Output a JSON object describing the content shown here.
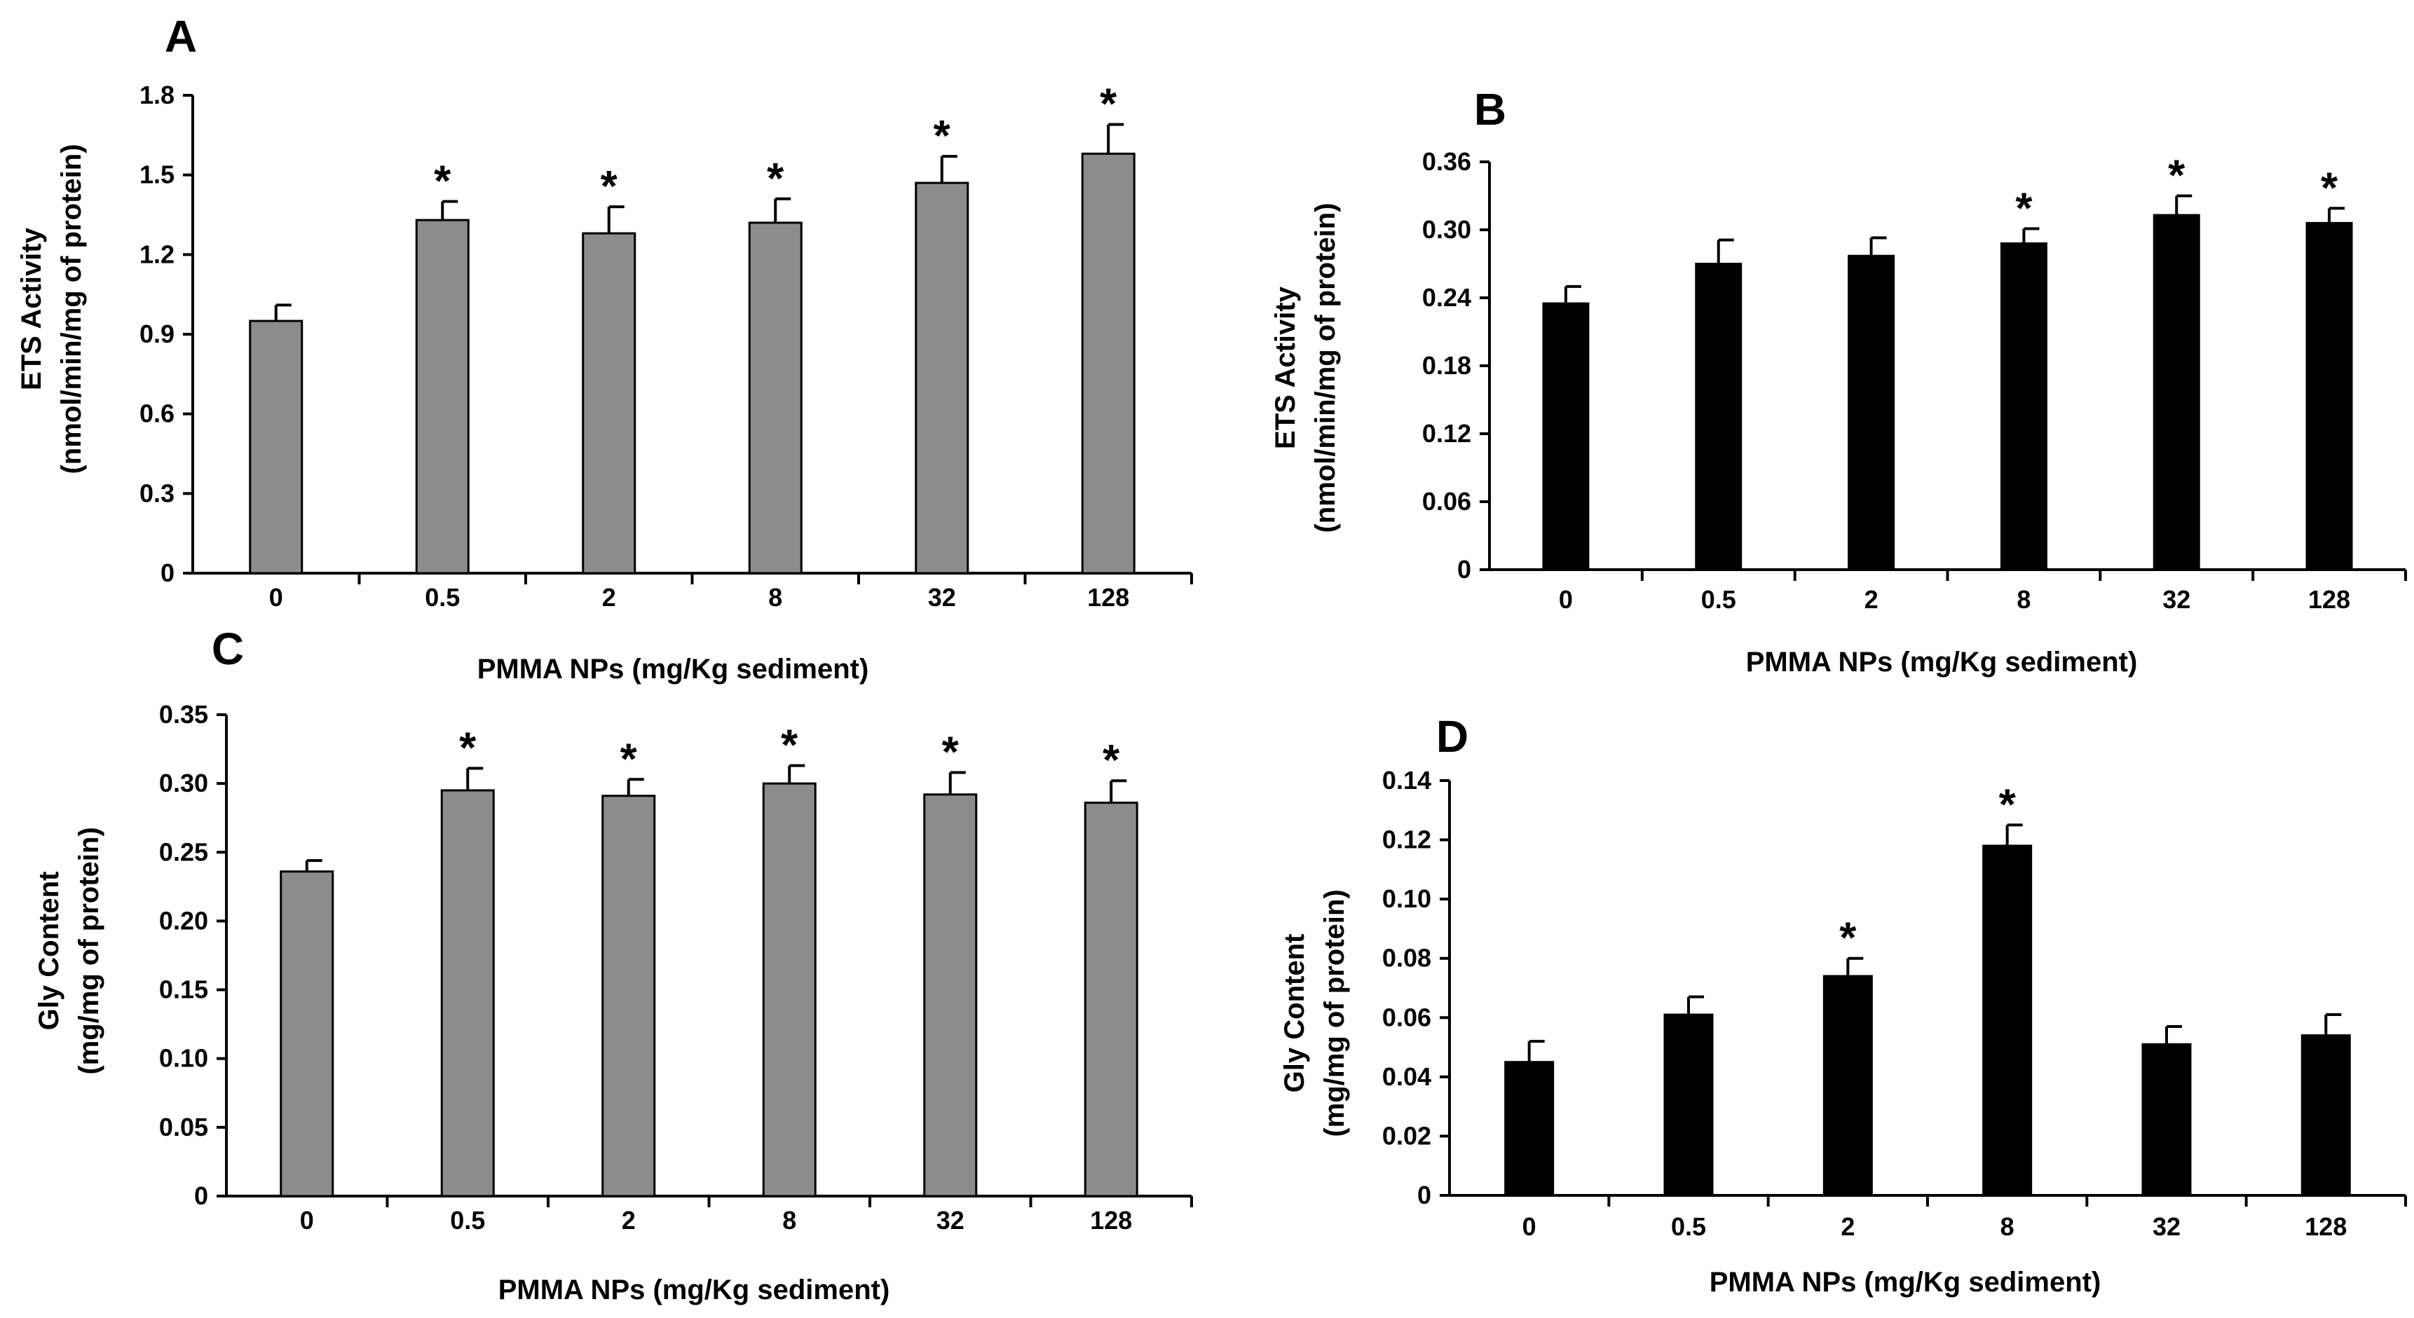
{
  "chart_data": [
    {
      "type": "bar",
      "panel": "A",
      "bar_color": "#8c8c8c",
      "categories": [
        "0",
        "0.5",
        "2",
        "8",
        "32",
        "128"
      ],
      "values": [
        0.95,
        1.33,
        1.28,
        1.32,
        1.47,
        1.58
      ],
      "errors": [
        0.06,
        0.07,
        0.1,
        0.09,
        0.1,
        0.11
      ],
      "significant": [
        false,
        true,
        true,
        true,
        true,
        true
      ],
      "significance_marker": "*",
      "yticks": [
        "0",
        "0.3",
        "0.6",
        "0.9",
        "1.2",
        "1.5",
        "1.8"
      ],
      "ylim": [
        0,
        1.8
      ],
      "ylabel_line1": "ETS Activity",
      "ylabel_line2": "(nmol/min/mg of protein)",
      "xlabel": "PMMA NPs (mg/Kg sediment)"
    },
    {
      "type": "bar",
      "panel": "B",
      "bar_color": "#000000",
      "categories": [
        "0",
        "0.5",
        "2",
        "8",
        "32",
        "128"
      ],
      "values": [
        0.235,
        0.27,
        0.277,
        0.288,
        0.313,
        0.306
      ],
      "errors": [
        0.015,
        0.021,
        0.016,
        0.013,
        0.017,
        0.013
      ],
      "significant": [
        false,
        false,
        false,
        true,
        true,
        true
      ],
      "significance_marker": "*",
      "yticks": [
        "0",
        "0.06",
        "0.12",
        "0.18",
        "0.24",
        "0.30",
        "0.36"
      ],
      "ylim": [
        0,
        0.36
      ],
      "ylabel_line1": "ETS Activity",
      "ylabel_line2": "(nmol/min/mg of protein)",
      "xlabel": "PMMA NPs (mg/Kg sediment)"
    },
    {
      "type": "bar",
      "panel": "C",
      "bar_color": "#8c8c8c",
      "categories": [
        "0",
        "0.5",
        "2",
        "8",
        "32",
        "128"
      ],
      "values": [
        0.236,
        0.295,
        0.291,
        0.3,
        0.292,
        0.286
      ],
      "errors": [
        0.008,
        0.016,
        0.012,
        0.013,
        0.016,
        0.016
      ],
      "significant": [
        false,
        true,
        true,
        true,
        true,
        true
      ],
      "significance_marker": "*",
      "yticks": [
        "0",
        "0.05",
        "0.10",
        "0.15",
        "0.20",
        "0.25",
        "0.30",
        "0.35"
      ],
      "ylim": [
        0,
        0.35
      ],
      "ylabel_line1": "Gly Content",
      "ylabel_line2": "(mg/mg of protein)",
      "xlabel": "PMMA NPs (mg/Kg sediment)"
    },
    {
      "type": "bar",
      "panel": "D",
      "bar_color": "#000000",
      "categories": [
        "0",
        "0.5",
        "2",
        "8",
        "32",
        "128"
      ],
      "values": [
        0.045,
        0.061,
        0.074,
        0.118,
        0.051,
        0.054
      ],
      "errors": [
        0.007,
        0.006,
        0.006,
        0.007,
        0.006,
        0.007
      ],
      "significant": [
        false,
        false,
        true,
        true,
        false,
        false
      ],
      "significance_marker": "*",
      "yticks": [
        "0",
        "0.02",
        "0.04",
        "0.06",
        "0.08",
        "0.10",
        "0.12",
        "0.14"
      ],
      "ylim": [
        0,
        0.14
      ],
      "ylabel_line1": "Gly Content",
      "ylabel_line2": "(mg/mg of protein)",
      "xlabel": "PMMA NPs (mg/Kg sediment)"
    }
  ]
}
